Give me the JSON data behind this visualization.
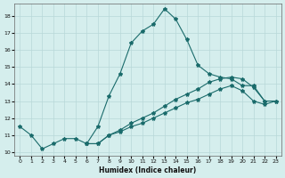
{
  "xlabel": "Humidex (Indice chaleur)",
  "bg_color": "#d5eeed",
  "grid_color": "#b8d8d8",
  "line_color": "#1a6b6b",
  "xlim": [
    -0.5,
    23.5
  ],
  "ylim": [
    9.8,
    18.7
  ],
  "xticks": [
    0,
    1,
    2,
    3,
    4,
    5,
    6,
    7,
    8,
    9,
    10,
    11,
    12,
    13,
    14,
    15,
    16,
    17,
    18,
    19,
    20,
    21,
    22,
    23
  ],
  "yticks": [
    10,
    11,
    12,
    13,
    14,
    15,
    16,
    17,
    18
  ],
  "line1_x": [
    0,
    1,
    2,
    3,
    4,
    5,
    6,
    7,
    8,
    9,
    10,
    11,
    12,
    13,
    14,
    15,
    16,
    17,
    18,
    19,
    20,
    21,
    22
  ],
  "line1_y": [
    11.5,
    11.0,
    10.2,
    10.5,
    10.8,
    10.8,
    10.5,
    11.5,
    13.3,
    14.6,
    16.4,
    17.1,
    17.5,
    18.4,
    17.8,
    16.6,
    15.1,
    14.6,
    14.4,
    14.3,
    13.9,
    13.9,
    13.0
  ],
  "line2_x": [
    6,
    7,
    8,
    9,
    10,
    11,
    12,
    13,
    14,
    15,
    16,
    17,
    18,
    19,
    20,
    21,
    22,
    23
  ],
  "line2_y": [
    10.5,
    10.5,
    11.0,
    11.3,
    11.7,
    12.0,
    12.3,
    12.7,
    13.1,
    13.4,
    13.7,
    14.1,
    14.3,
    14.4,
    14.3,
    13.8,
    13.0,
    13.0
  ],
  "line3_x": [
    6,
    7,
    8,
    9,
    10,
    11,
    12,
    13,
    14,
    15,
    16,
    17,
    18,
    19,
    20,
    21,
    22,
    23
  ],
  "line3_y": [
    10.5,
    10.5,
    11.0,
    11.2,
    11.5,
    11.7,
    12.0,
    12.3,
    12.6,
    12.9,
    13.1,
    13.4,
    13.7,
    13.9,
    13.6,
    13.0,
    12.8,
    13.0
  ]
}
